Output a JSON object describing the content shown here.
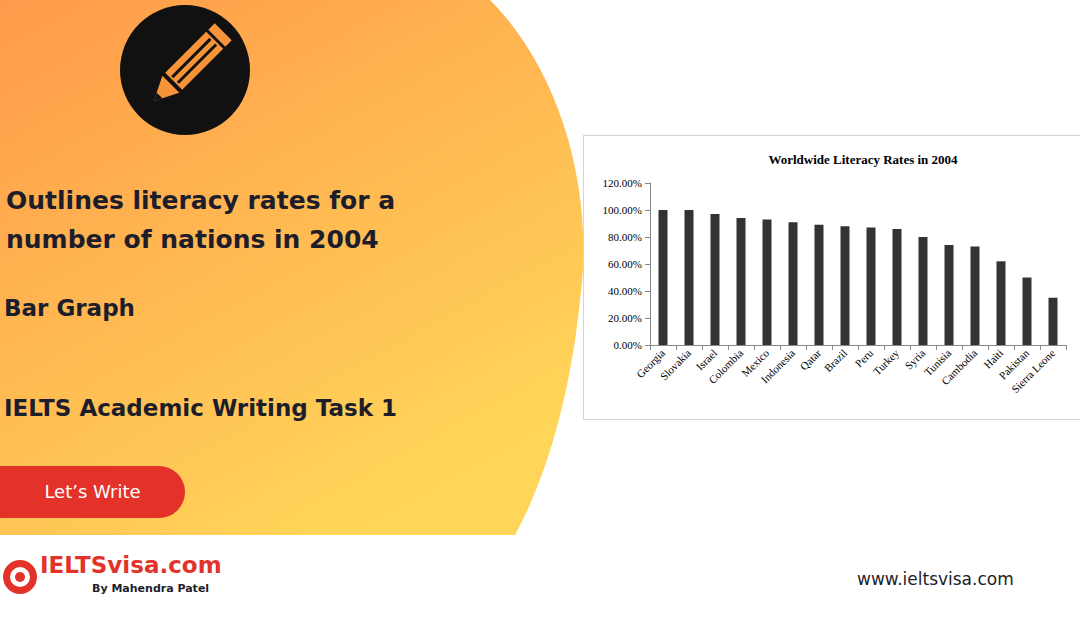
{
  "chart_data": {
    "type": "bar",
    "title": "Worldwide Literacy Rates in 2004",
    "categories": [
      "Georgia",
      "Slovakia",
      "Israel",
      "Colombia",
      "Mexico",
      "Indonesia",
      "Qatar",
      "Brazil",
      "Peru",
      "Turkey",
      "Syria",
      "Tunisia",
      "Cambodia",
      "Haiti",
      "Pakistan",
      "Sierra Leone"
    ],
    "values": [
      100,
      100,
      97,
      94,
      93,
      91,
      89,
      88,
      87,
      86,
      80,
      74,
      73,
      62,
      50,
      35
    ],
    "color": "#333333",
    "ylim": [
      0,
      120
    ],
    "yticks": [
      {
        "value": 0,
        "label": "0.00%"
      },
      {
        "value": 20,
        "label": "20.00%"
      },
      {
        "value": 40,
        "label": "40.00%"
      },
      {
        "value": 60,
        "label": "60.00%"
      },
      {
        "value": 80,
        "label": "80.00%"
      },
      {
        "value": 100,
        "label": "100.00%"
      },
      {
        "value": 120,
        "label": "120.00%"
      }
    ],
    "grid": false
  },
  "page": {
    "heading_lines": [
      "Outlines literacy rates for a",
      "number of nations in 2004"
    ],
    "chart_kind": "Bar Graph",
    "task": "IELTS Academic Writing Task 1",
    "button": "Let’s Write",
    "logo": "IELTSvisa.com",
    "byline": "By Mahendra Patel",
    "url": "www.ieltsvisa.com"
  }
}
